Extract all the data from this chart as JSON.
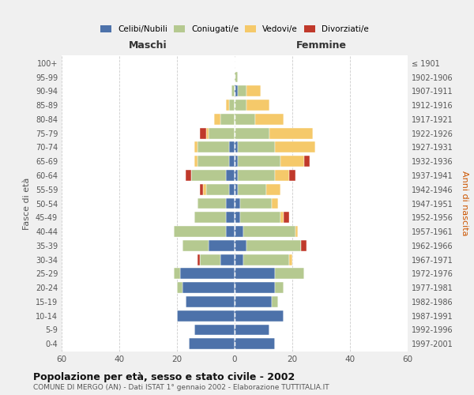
{
  "age_groups": [
    "0-4",
    "5-9",
    "10-14",
    "15-19",
    "20-24",
    "25-29",
    "30-34",
    "35-39",
    "40-44",
    "45-49",
    "50-54",
    "55-59",
    "60-64",
    "65-69",
    "70-74",
    "75-79",
    "80-84",
    "85-89",
    "90-94",
    "95-99",
    "100+"
  ],
  "birth_years": [
    "1997-2001",
    "1992-1996",
    "1987-1991",
    "1982-1986",
    "1977-1981",
    "1972-1976",
    "1967-1971",
    "1962-1966",
    "1957-1961",
    "1952-1956",
    "1947-1951",
    "1942-1946",
    "1937-1941",
    "1932-1936",
    "1927-1931",
    "1922-1926",
    "1917-1921",
    "1912-1916",
    "1907-1911",
    "1902-1906",
    "≤ 1901"
  ],
  "males": {
    "celibi": [
      16,
      14,
      20,
      17,
      18,
      19,
      5,
      9,
      3,
      3,
      3,
      2,
      3,
      2,
      2,
      0,
      0,
      0,
      0,
      0,
      0
    ],
    "coniugati": [
      0,
      0,
      0,
      0,
      2,
      2,
      7,
      9,
      18,
      11,
      10,
      8,
      12,
      11,
      11,
      9,
      5,
      2,
      1,
      0,
      0
    ],
    "vedovi": [
      0,
      0,
      0,
      0,
      0,
      0,
      0,
      0,
      0,
      0,
      0,
      1,
      0,
      1,
      1,
      1,
      2,
      1,
      0,
      0,
      0
    ],
    "divorziati": [
      0,
      0,
      0,
      0,
      0,
      0,
      1,
      0,
      0,
      0,
      0,
      1,
      2,
      0,
      0,
      2,
      0,
      0,
      0,
      0,
      0
    ]
  },
  "females": {
    "nubili": [
      14,
      12,
      17,
      13,
      14,
      14,
      3,
      4,
      3,
      2,
      2,
      1,
      1,
      1,
      1,
      0,
      0,
      0,
      1,
      0,
      0
    ],
    "coniugate": [
      0,
      0,
      0,
      2,
      3,
      10,
      16,
      19,
      18,
      14,
      11,
      10,
      13,
      15,
      13,
      12,
      7,
      4,
      3,
      1,
      0
    ],
    "vedove": [
      0,
      0,
      0,
      0,
      0,
      0,
      1,
      0,
      1,
      1,
      2,
      5,
      5,
      8,
      14,
      15,
      10,
      8,
      5,
      0,
      0
    ],
    "divorziate": [
      0,
      0,
      0,
      0,
      0,
      0,
      0,
      2,
      0,
      2,
      0,
      0,
      2,
      2,
      0,
      0,
      0,
      0,
      0,
      0,
      0
    ]
  },
  "colors": {
    "celibi_nubili": "#4d72aa",
    "coniugati": "#b5c990",
    "vedovi": "#f5c96a",
    "divorziati": "#c0392b"
  },
  "title": "Popolazione per età, sesso e stato civile - 2002",
  "subtitle": "COMUNE DI MERGO (AN) - Dati ISTAT 1° gennaio 2002 - Elaborazione TUTTITALIA.IT",
  "ylabel_left": "Fasce di età",
  "ylabel_right": "Anni di nascita",
  "xlabel_left": "Maschi",
  "xlabel_right": "Femmine",
  "xlim": 60,
  "background_color": "#f0f0f0",
  "plot_background": "#ffffff"
}
